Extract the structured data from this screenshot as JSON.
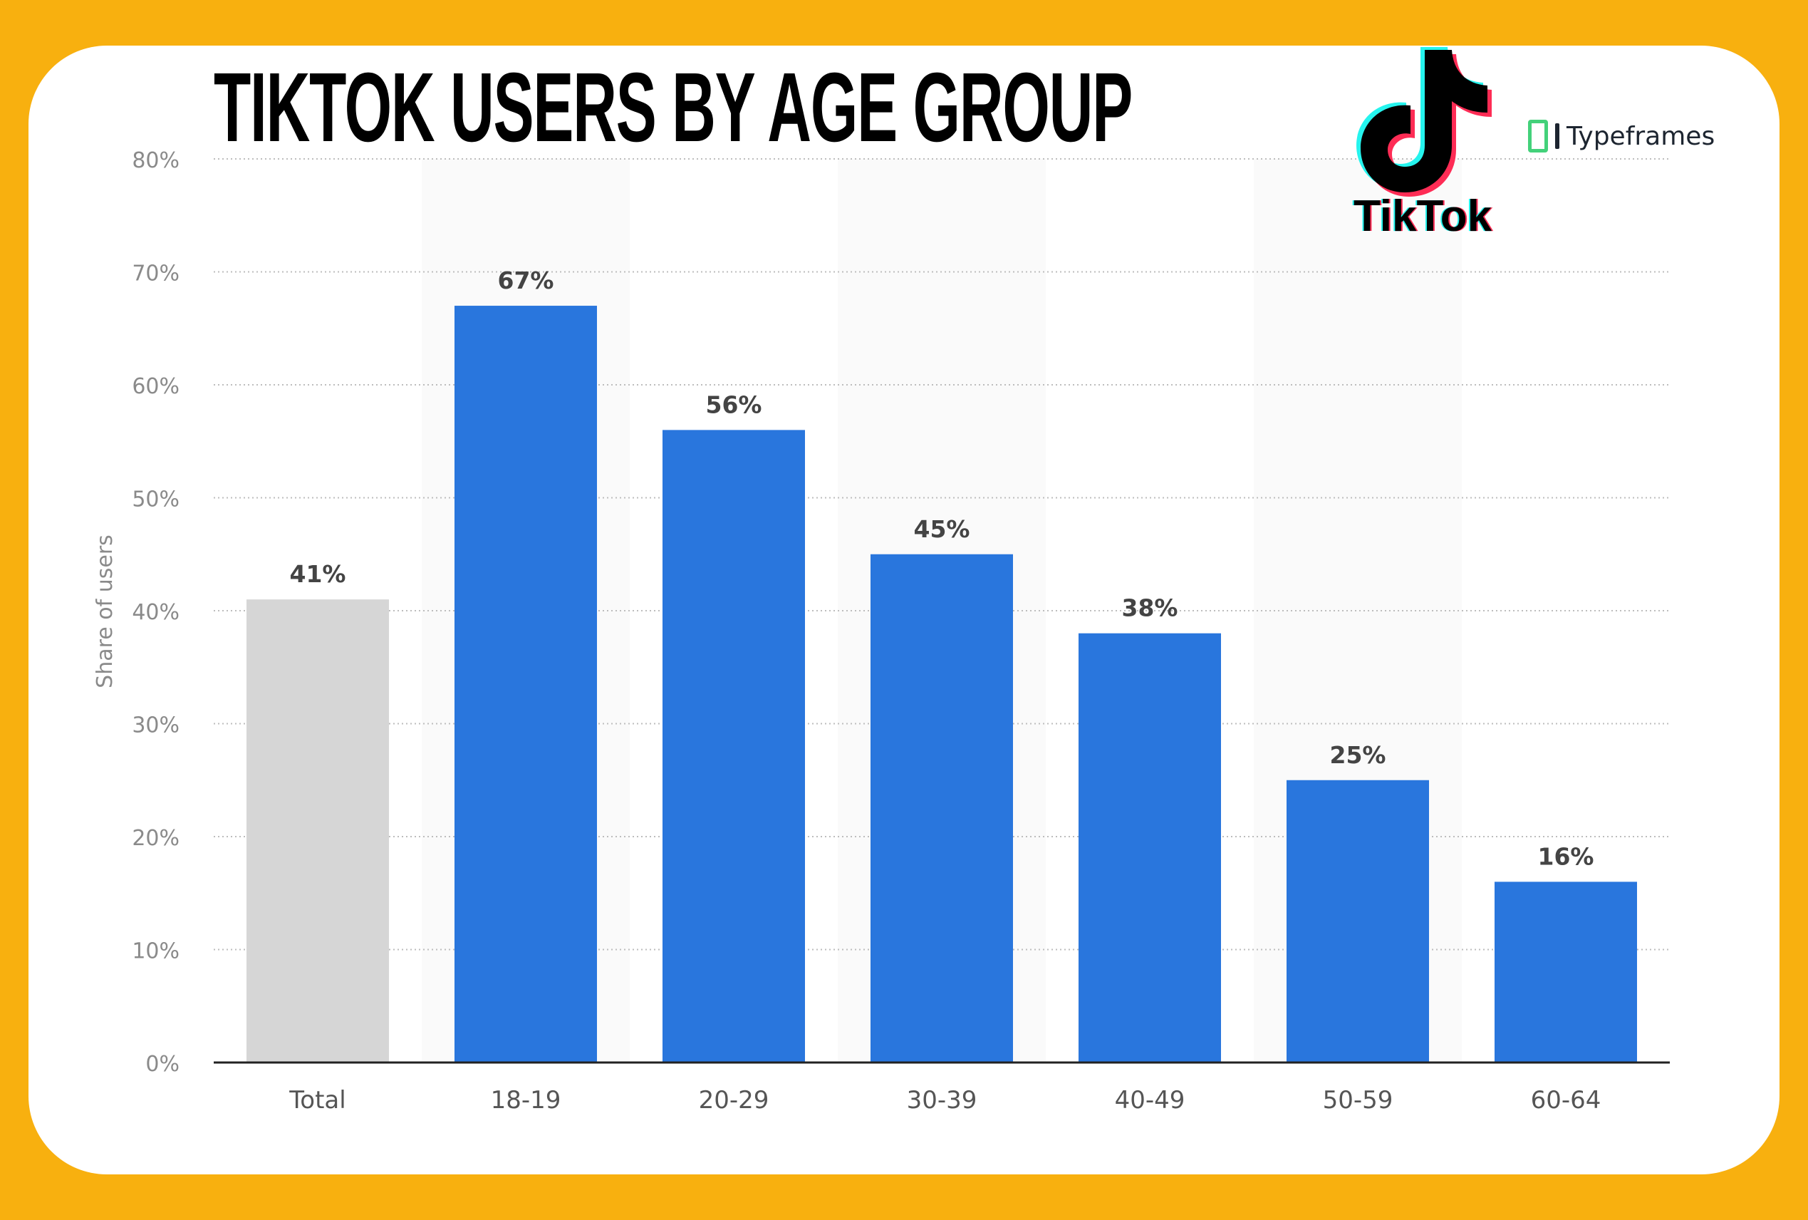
{
  "title": "TIKTOK USERS BY AGE GROUP",
  "logos": {
    "tiktok": "TikTok",
    "typeframes": "Typeframes"
  },
  "colors": {
    "background": "#F8B00F",
    "bar": "#2976DD",
    "total_bar": "#D6D6D6",
    "band": "#FAFAFA"
  },
  "chart_data": {
    "type": "bar",
    "title": "TIKTOK USERS BY AGE GROUP",
    "categories": [
      "Total",
      "18-19",
      "20-29",
      "30-39",
      "40-49",
      "50-59",
      "60-64"
    ],
    "values": [
      41,
      67,
      56,
      45,
      38,
      25,
      16
    ],
    "data_labels": [
      "41%",
      "67%",
      "56%",
      "45%",
      "38%",
      "25%",
      "16%"
    ],
    "xlabel": "",
    "ylabel": "Share of users",
    "ylim": [
      0,
      80
    ],
    "yticks": [
      0,
      10,
      20,
      30,
      40,
      50,
      60,
      70,
      80
    ],
    "ytick_labels": [
      "0%",
      "10%",
      "20%",
      "30%",
      "40%",
      "50%",
      "60%",
      "70%",
      "80%"
    ],
    "grid": true,
    "highlight": {
      "Total": "#D6D6D6"
    }
  }
}
